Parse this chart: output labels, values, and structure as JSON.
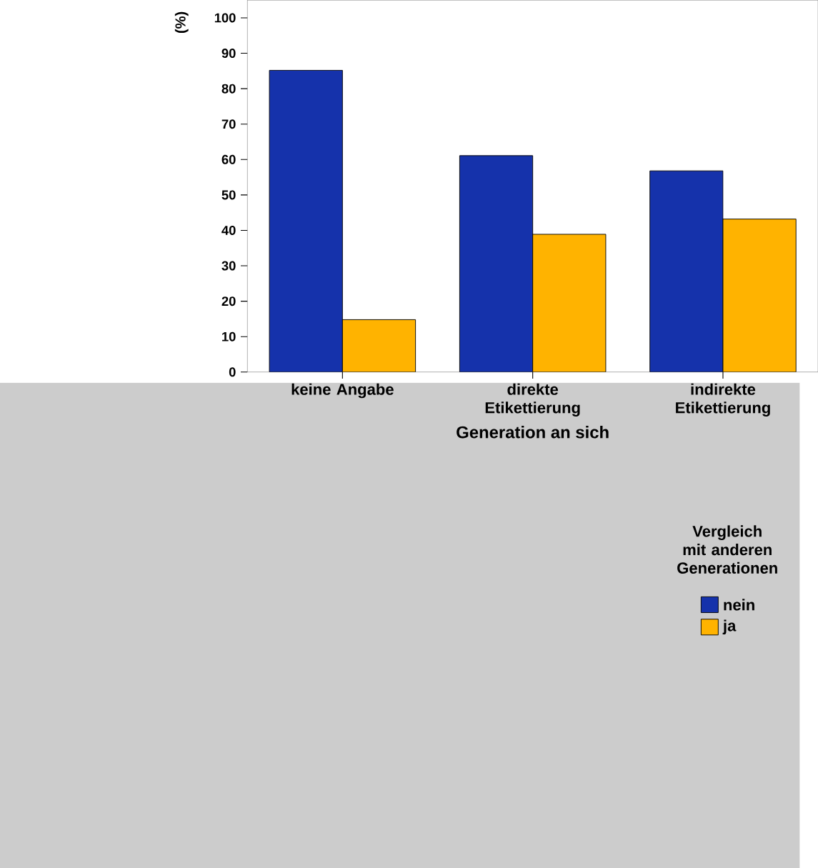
{
  "chart_data": {
    "type": "bar",
    "xlabel": "Generation an sich",
    "ylabel": "(%)",
    "legend_title": "Vergleich mit anderen Generationen",
    "categories": [
      "keine Angabe",
      "direkte Etikettierung",
      "indirekte Etikettierung"
    ],
    "series": [
      {
        "name": "nein",
        "color": "#1532ab",
        "values": [
          85.2,
          61.1,
          56.8
        ]
      },
      {
        "name": "ja",
        "color": "#ffb300",
        "values": [
          14.8,
          38.9,
          43.2
        ]
      }
    ],
    "ylim": [
      0,
      105
    ],
    "yticks": [
      0,
      10,
      20,
      30,
      40,
      50,
      60,
      70,
      80,
      90,
      100
    ],
    "grid": false,
    "legend": "right"
  }
}
